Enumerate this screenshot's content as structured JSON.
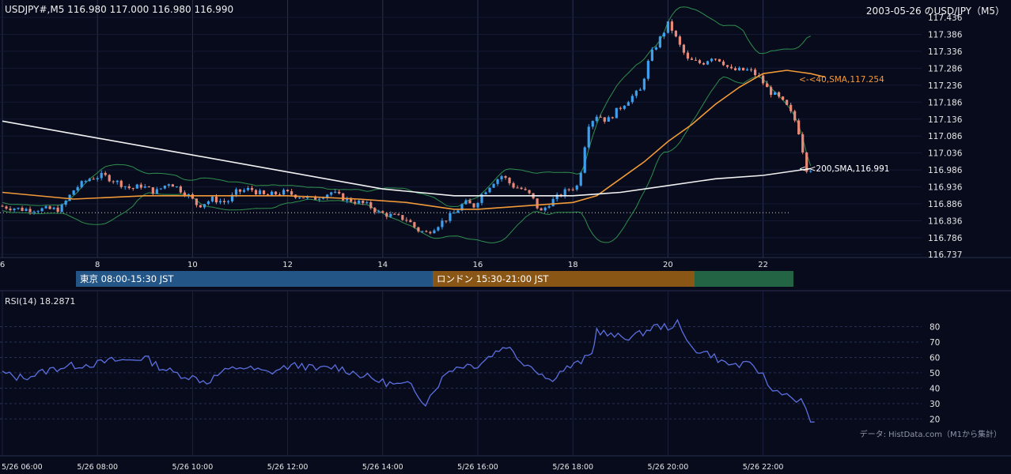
{
  "header": {
    "left": "USDJPY#,M5 116.980 117.000 116.980 116.990",
    "right": "2003-05-26 のUSD/JPY（M5）"
  },
  "sessions": {
    "tokyo": "東京 08:00-15:30 JST",
    "london": "ロンドン 15:30-21:00 JST",
    "newyork": ""
  },
  "rsi_label": "RSI(14) 18.2871",
  "source": "データ: HistData.com（M1から集計）",
  "colors": {
    "background": "#070b1c",
    "up": "#3ca0ee",
    "down": "#e98a78",
    "sma40": "#f29a38",
    "sma200": "#f2f2f2",
    "bollinger": "#2f8f4e",
    "rsi": "#5b6fe0",
    "grid": "#1f2440"
  },
  "chart_data": [
    {
      "type": "candlestick",
      "title": "2003-05-26 のUSD/JPY（M5）",
      "x_tick_labels": [
        "6",
        "8",
        "10",
        "12",
        "14",
        "16",
        "18",
        "20",
        "22"
      ],
      "x_range_hours": [
        6,
        23.3
      ],
      "y_tick_labels": [
        "117.436",
        "117.386",
        "117.336",
        "117.286",
        "117.236",
        "117.186",
        "117.136",
        "117.086",
        "117.036",
        "116.986",
        "116.936",
        "116.886",
        "116.836",
        "116.786",
        "116.737"
      ],
      "ylim": [
        116.737,
        117.436
      ],
      "grid": true,
      "dotted_reference_level": 116.86,
      "price_path": [
        [
          6.0,
          116.88
        ],
        [
          6.5,
          116.87
        ],
        [
          7.0,
          116.87
        ],
        [
          7.3,
          116.87
        ],
        [
          7.6,
          116.93
        ],
        [
          7.9,
          116.96
        ],
        [
          8.2,
          116.97
        ],
        [
          8.5,
          116.95
        ],
        [
          8.8,
          116.93
        ],
        [
          9.0,
          116.94
        ],
        [
          9.3,
          116.92
        ],
        [
          9.6,
          116.95
        ],
        [
          10.0,
          116.91
        ],
        [
          10.2,
          116.88
        ],
        [
          10.5,
          116.9
        ],
        [
          10.8,
          116.89
        ],
        [
          11.0,
          116.92
        ],
        [
          11.3,
          116.93
        ],
        [
          11.6,
          116.91
        ],
        [
          12.0,
          116.92
        ],
        [
          12.3,
          116.91
        ],
        [
          12.6,
          116.9
        ],
        [
          13.0,
          116.92
        ],
        [
          13.3,
          116.9
        ],
        [
          13.6,
          116.89
        ],
        [
          13.8,
          116.88
        ],
        [
          14.0,
          116.86
        ],
        [
          14.3,
          116.85
        ],
        [
          14.6,
          116.84
        ],
        [
          14.8,
          116.81
        ],
        [
          15.0,
          116.8
        ],
        [
          15.2,
          116.82
        ],
        [
          15.4,
          116.84
        ],
        [
          15.6,
          116.86
        ],
        [
          15.8,
          116.89
        ],
        [
          16.0,
          116.88
        ],
        [
          16.2,
          116.92
        ],
        [
          16.4,
          116.95
        ],
        [
          16.6,
          116.97
        ],
        [
          16.8,
          116.94
        ],
        [
          17.0,
          116.93
        ],
        [
          17.2,
          116.91
        ],
        [
          17.4,
          116.86
        ],
        [
          17.6,
          116.89
        ],
        [
          17.8,
          116.91
        ],
        [
          18.0,
          116.93
        ],
        [
          18.2,
          116.94
        ],
        [
          18.4,
          117.12
        ],
        [
          18.6,
          117.15
        ],
        [
          18.8,
          117.13
        ],
        [
          19.0,
          117.16
        ],
        [
          19.3,
          117.2
        ],
        [
          19.5,
          117.22
        ],
        [
          19.7,
          117.32
        ],
        [
          19.9,
          117.37
        ],
        [
          20.1,
          117.42
        ],
        [
          20.3,
          117.36
        ],
        [
          20.5,
          117.31
        ],
        [
          20.8,
          117.3
        ],
        [
          21.0,
          117.32
        ],
        [
          21.2,
          117.31
        ],
        [
          21.4,
          117.28
        ],
        [
          21.6,
          117.28
        ],
        [
          21.8,
          117.28
        ],
        [
          22.0,
          117.26
        ],
        [
          22.2,
          117.22
        ],
        [
          22.4,
          117.2
        ],
        [
          22.6,
          117.17
        ],
        [
          22.8,
          117.12
        ],
        [
          23.0,
          116.99
        ]
      ]
    },
    {
      "type": "line",
      "series": [
        {
          "name": "<-<40,SMA,117.254",
          "points": [
            [
              6.0,
              116.92
            ],
            [
              7.5,
              116.9
            ],
            [
              9.0,
              116.91
            ],
            [
              10.5,
              116.91
            ],
            [
              12.0,
              116.91
            ],
            [
              13.5,
              116.9
            ],
            [
              14.5,
              116.89
            ],
            [
              15.5,
              116.87
            ],
            [
              16.0,
              116.87
            ],
            [
              17.0,
              116.88
            ],
            [
              18.0,
              116.89
            ],
            [
              18.5,
              116.91
            ],
            [
              19.0,
              116.96
            ],
            [
              19.5,
              117.01
            ],
            [
              20.0,
              117.07
            ],
            [
              20.5,
              117.12
            ],
            [
              21.0,
              117.18
            ],
            [
              21.5,
              117.23
            ],
            [
              22.0,
              117.27
            ],
            [
              22.5,
              117.28
            ],
            [
              23.0,
              117.27
            ],
            [
              23.3,
              117.26
            ]
          ]
        },
        {
          "name": "<-<200,SMA,116.991",
          "points": [
            [
              6.0,
              117.13
            ],
            [
              8.0,
              117.08
            ],
            [
              10.0,
              117.03
            ],
            [
              12.0,
              116.98
            ],
            [
              14.0,
              116.93
            ],
            [
              15.5,
              116.91
            ],
            [
              16.5,
              116.91
            ],
            [
              18.0,
              116.91
            ],
            [
              19.0,
              116.92
            ],
            [
              20.0,
              116.94
            ],
            [
              21.0,
              116.96
            ],
            [
              22.0,
              116.97
            ],
            [
              23.0,
              116.99
            ]
          ]
        }
      ],
      "ylim": [
        116.737,
        117.436
      ]
    },
    {
      "type": "line",
      "title": "RSI(14) 18.2871",
      "y_tick_labels": [
        "80",
        "70",
        "60",
        "50",
        "40",
        "30",
        "20"
      ],
      "ylim": [
        15,
        88
      ],
      "x_tick_labels": [
        "5/26 06:00",
        "5/26 08:00",
        "5/26 10:00",
        "5/26 12:00",
        "5/26 14:00",
        "5/26 16:00",
        "5/26 18:00",
        "5/26 20:00",
        "5/26 22:00"
      ],
      "series": [
        {
          "name": "RSI(14)",
          "points": [
            [
              6.0,
              50
            ],
            [
              6.3,
              47
            ],
            [
              6.6,
              48
            ],
            [
              7.0,
              52
            ],
            [
              7.3,
              54
            ],
            [
              7.6,
              55
            ],
            [
              8.0,
              56
            ],
            [
              8.3,
              58
            ],
            [
              8.6,
              58
            ],
            [
              9.0,
              60
            ],
            [
              9.3,
              54
            ],
            [
              9.6,
              50
            ],
            [
              10.0,
              47
            ],
            [
              10.3,
              44
            ],
            [
              10.6,
              50
            ],
            [
              11.0,
              54
            ],
            [
              11.3,
              52
            ],
            [
              11.6,
              50
            ],
            [
              12.0,
              54
            ],
            [
              12.3,
              55
            ],
            [
              12.6,
              52
            ],
            [
              13.0,
              54
            ],
            [
              13.3,
              51
            ],
            [
              13.6,
              48
            ],
            [
              14.0,
              44
            ],
            [
              14.3,
              42
            ],
            [
              14.6,
              42
            ],
            [
              14.9,
              30
            ],
            [
              15.1,
              40
            ],
            [
              15.4,
              52
            ],
            [
              15.7,
              55
            ],
            [
              16.0,
              55
            ],
            [
              16.3,
              62
            ],
            [
              16.6,
              68
            ],
            [
              16.9,
              58
            ],
            [
              17.2,
              53
            ],
            [
              17.5,
              45
            ],
            [
              17.8,
              52
            ],
            [
              18.1,
              56
            ],
            [
              18.4,
              62
            ],
            [
              18.5,
              78
            ],
            [
              18.8,
              74
            ],
            [
              19.1,
              73
            ],
            [
              19.4,
              75
            ],
            [
              19.7,
              80
            ],
            [
              20.0,
              80
            ],
            [
              20.2,
              82
            ],
            [
              20.4,
              70
            ],
            [
              20.6,
              65
            ],
            [
              20.9,
              62
            ],
            [
              21.2,
              56
            ],
            [
              21.5,
              55
            ],
            [
              21.8,
              55
            ],
            [
              22.0,
              48
            ],
            [
              22.2,
              38
            ],
            [
              22.4,
              38
            ],
            [
              22.6,
              34
            ],
            [
              22.8,
              32
            ],
            [
              23.0,
              18
            ]
          ]
        }
      ]
    }
  ]
}
